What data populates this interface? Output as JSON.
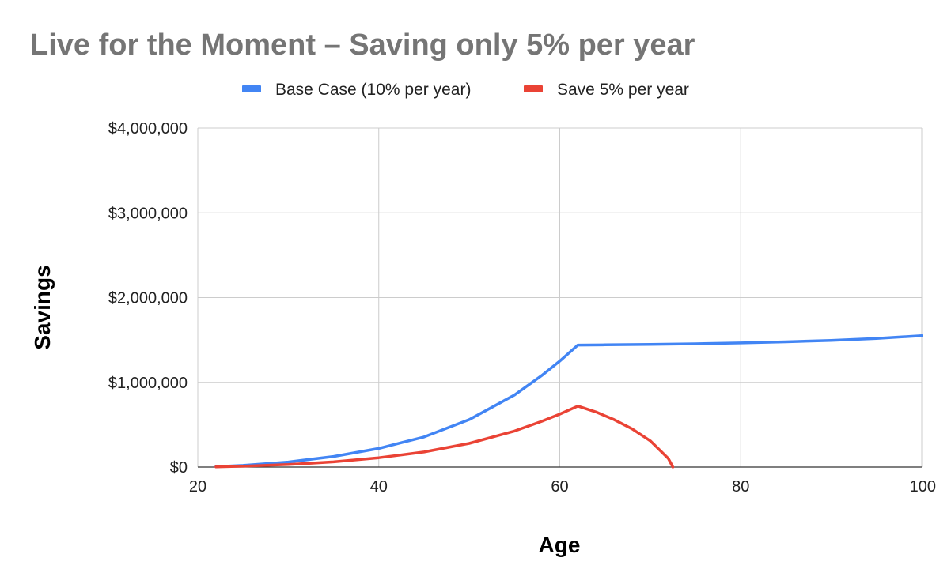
{
  "chart_data": {
    "type": "line",
    "title": "Live for the Moment – Saving only 5% per year",
    "xlabel": "Age",
    "ylabel": "Savings",
    "xlim": [
      20,
      100
    ],
    "ylim": [
      0,
      4000000
    ],
    "x_ticks": [
      {
        "value": 20,
        "label": "20"
      },
      {
        "value": 40,
        "label": "40"
      },
      {
        "value": 60,
        "label": "60"
      },
      {
        "value": 80,
        "label": "80"
      },
      {
        "value": 100,
        "label": "100"
      }
    ],
    "y_ticks": [
      {
        "value": 0,
        "label": "$0"
      },
      {
        "value": 1000000,
        "label": "$1,000,000"
      },
      {
        "value": 2000000,
        "label": "$2,000,000"
      },
      {
        "value": 3000000,
        "label": "$3,000,000"
      },
      {
        "value": 4000000,
        "label": "$4,000,000"
      }
    ],
    "grid": true,
    "legend_position": "top",
    "series": [
      {
        "name": "Base Case (10% per year)",
        "color": "#4285f4",
        "x": [
          22,
          25,
          30,
          35,
          40,
          45,
          50,
          55,
          58,
          60,
          62,
          65,
          70,
          75,
          80,
          85,
          90,
          95,
          100
        ],
        "y": [
          5000,
          20000,
          60000,
          125000,
          220000,
          355000,
          560000,
          850000,
          1080000,
          1250000,
          1440000,
          1442000,
          1448000,
          1455000,
          1465000,
          1478000,
          1495000,
          1518000,
          1550000
        ]
      },
      {
        "name": "Save 5% per year",
        "color": "#ea4335",
        "x": [
          22,
          25,
          30,
          35,
          40,
          45,
          50,
          55,
          58,
          60,
          62,
          64,
          66,
          68,
          70,
          72,
          72.5
        ],
        "y": [
          2500,
          10000,
          30000,
          62000,
          110000,
          178000,
          280000,
          425000,
          540000,
          625000,
          720000,
          650000,
          560000,
          450000,
          310000,
          100000,
          0
        ]
      }
    ]
  }
}
